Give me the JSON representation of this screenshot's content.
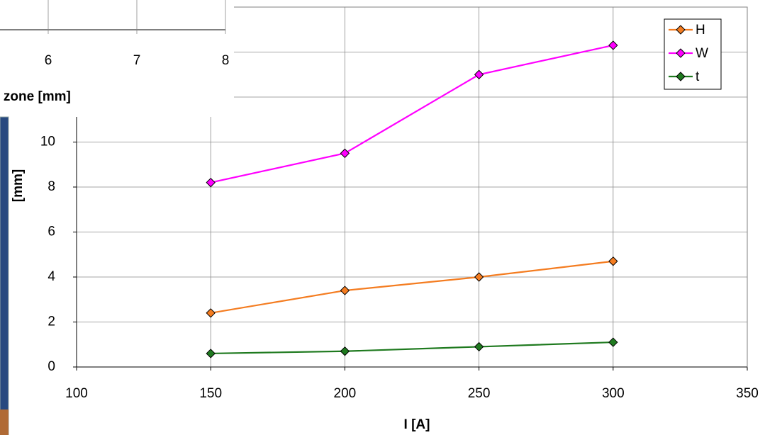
{
  "chart_data": {
    "type": "line",
    "x_label": "I [A]",
    "y_label": "[mm]",
    "x": [
      150,
      200,
      250,
      300
    ],
    "series": [
      {
        "name": "H",
        "color": "#f47c20",
        "values": [
          2.4,
          3.4,
          4.0,
          4.7
        ]
      },
      {
        "name": "W",
        "color": "#ff00ff",
        "values": [
          8.2,
          9.5,
          13.0,
          14.3
        ]
      },
      {
        "name": "t",
        "color": "#1f7a1f",
        "values": [
          0.6,
          0.7,
          0.9,
          1.1
        ]
      }
    ],
    "xlim": [
      100,
      350
    ],
    "xticks": [
      100,
      150,
      200,
      250,
      300,
      350
    ],
    "ylim": [
      0,
      16
    ],
    "yticks": [
      0,
      2,
      4,
      6,
      8,
      10,
      12,
      14,
      16
    ],
    "grid": true,
    "legend": "top-right"
  },
  "background_window": {
    "x_ticks": [
      6,
      7,
      8
    ],
    "x_label": "d zone [mm]"
  }
}
